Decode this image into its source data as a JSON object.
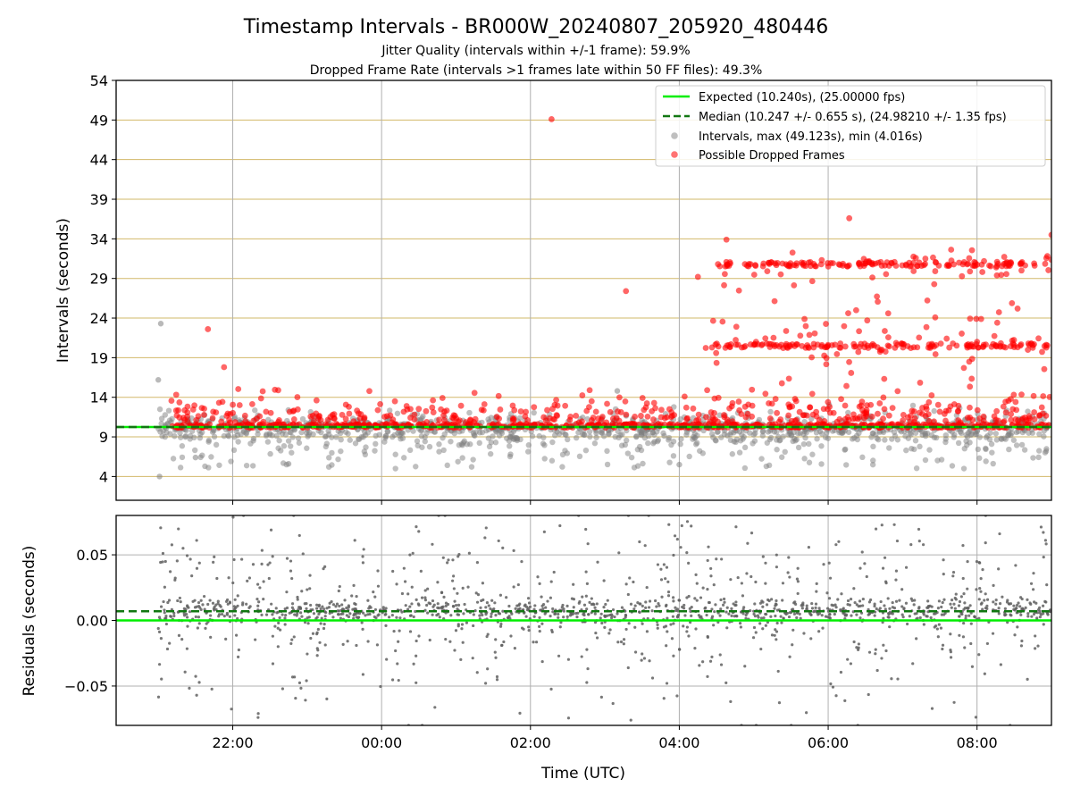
{
  "figure": {
    "title": "Timestamp Intervals - BR000W_20240807_205920_480446",
    "subtitle_1": "Jitter Quality (intervals within +/-1 frame): 59.9%",
    "subtitle_2": "Dropped Frame Rate (intervals >1 frames late within 50 FF files): 49.3%",
    "xlabel": "Time (UTC)"
  },
  "colors": {
    "expected": "#00ee00",
    "median": "#117711",
    "intervals": "#808080",
    "dropped": "#ff0000",
    "hgrid_top": "#d2b86a",
    "grid": "#b0b0b0"
  },
  "chart_data": [
    {
      "type": "scatter",
      "panel": "top",
      "ylabel": "Intervals (seconds)",
      "xlim": [
        "2024-08-07 20:26",
        "2024-08-08 09:00"
      ],
      "ylim": [
        1,
        54
      ],
      "yticks": [
        4,
        9,
        14,
        19,
        24,
        29,
        34,
        39,
        44,
        49,
        54
      ],
      "xticks": [
        "22:00",
        "00:00",
        "02:00",
        "04:00",
        "06:00",
        "08:00"
      ],
      "grid": "on",
      "legend_position": "top-right",
      "legend": [
        "Expected (10.240s), (25.00000 fps)",
        "Median (10.247 +/- 0.655 s), (24.98210 +/- 1.35 fps)",
        "Intervals, max (49.123s), min (4.016s)",
        "Possible Dropped Frames"
      ],
      "expected_interval": 10.24,
      "median_interval": 10.247,
      "series": [
        {
          "name": "Intervals, max (49.123s), min (4.016s)",
          "x_start": "2024-08-07 21:00",
          "x_end": "2024-08-08 09:00",
          "typical_range": [
            7,
            12
          ],
          "max": 49.123,
          "min": 4.016,
          "sample_points": [
            {
              "x": "2024-08-07 21:00",
              "y": 16.2
            },
            {
              "x": "2024-08-07 21:02",
              "y": 23.3
            },
            {
              "x": "2024-08-07 21:01",
              "y": 4.0
            },
            {
              "x": "2024-08-07 21:30",
              "y": 6.4
            },
            {
              "x": "2024-08-07 22:45",
              "y": 5.6
            },
            {
              "x": "2024-08-08 03:10",
              "y": 14.8
            },
            {
              "x": "2024-08-08 04:00",
              "y": 5.5
            }
          ]
        },
        {
          "name": "Possible Dropped Frames",
          "bands": [
            {
              "from": "2024-08-07 21:10",
              "to": "2024-08-08 09:00",
              "y": 10.4
            },
            {
              "from": "2024-08-08 04:20",
              "to": "2024-08-08 09:00",
              "y": 20.5
            },
            {
              "from": "2024-08-08 04:30",
              "to": "2024-08-08 09:00",
              "y": 30.8
            }
          ],
          "sample_points": [
            {
              "x": "2024-08-07 21:40",
              "y": 22.6
            },
            {
              "x": "2024-08-07 21:53",
              "y": 17.8
            },
            {
              "x": "2024-08-08 02:17",
              "y": 49.1
            },
            {
              "x": "2024-08-08 03:17",
              "y": 27.4
            },
            {
              "x": "2024-08-08 04:15",
              "y": 29.2
            },
            {
              "x": "2024-08-08 04:38",
              "y": 33.9
            },
            {
              "x": "2024-08-08 06:17",
              "y": 36.6
            },
            {
              "x": "2024-08-08 09:00",
              "y": 34.5
            }
          ]
        }
      ]
    },
    {
      "type": "scatter",
      "panel": "bottom",
      "ylabel": "Residuals (seconds)",
      "xlabel": "Time (UTC)",
      "xlim": [
        "2024-08-07 20:26",
        "2024-08-08 09:00"
      ],
      "ylim": [
        -0.08,
        0.08
      ],
      "yticks": [
        -0.05,
        0.0,
        0.05
      ],
      "ytick_labels": [
        "−0.05",
        "0.00",
        "0.05"
      ],
      "xticks": [
        "22:00",
        "00:00",
        "02:00",
        "04:00",
        "06:00",
        "08:00"
      ],
      "grid": "on",
      "expected_residual": 0.0,
      "median_residual": 0.007,
      "series": [
        {
          "name": "Residuals",
          "x_start": "2024-08-07 21:00",
          "x_end": "2024-08-08 09:00",
          "typical_range": [
            -0.08,
            0.08
          ],
          "cluster_center": 0.007
        }
      ]
    }
  ]
}
